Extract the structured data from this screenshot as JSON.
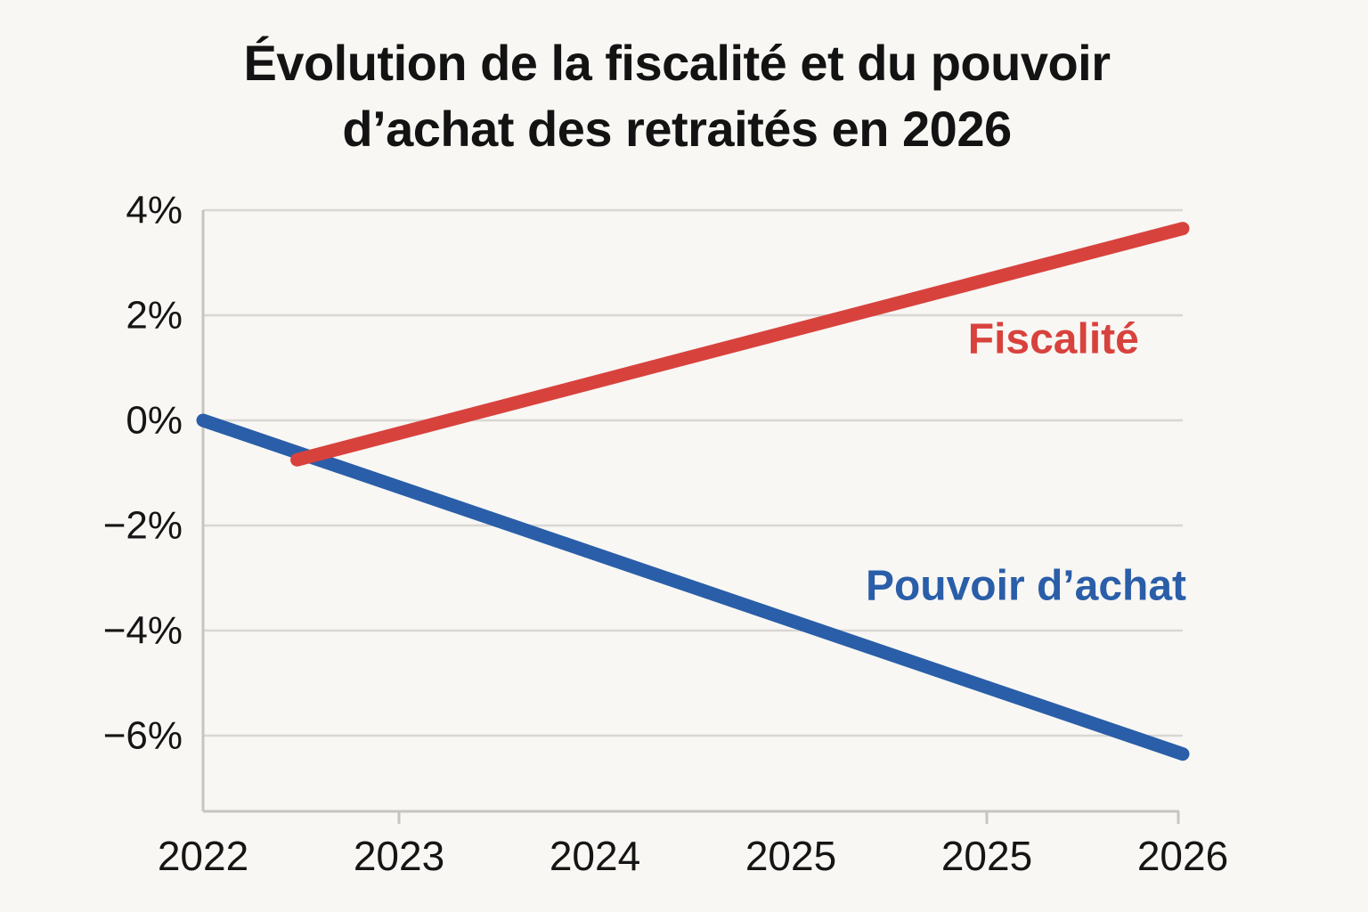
{
  "page": {
    "background_color": "#f8f7f4",
    "title_lines": [
      "Évolution de la fiscalité et du pouvoir",
      "d’achat des retraités en 2026"
    ]
  },
  "chart_data": {
    "type": "line",
    "title": "Évolution de la fiscalité et du pouvoir d’achat des retraités en 2026",
    "xlabel": "",
    "ylabel": "",
    "x_tick_labels": [
      "2022",
      "2023",
      "2024",
      "2025",
      "2025",
      "2026"
    ],
    "x_axis_visible_tick_mark_indices": [
      1,
      4,
      5
    ],
    "y_ticks": [
      4,
      2,
      0,
      -2,
      -4,
      -6
    ],
    "y_tick_labels": [
      "4%",
      "2%",
      "0%",
      "−2%",
      "−4%",
      "−6%"
    ],
    "ylim": [
      -7.4,
      4
    ],
    "grid": "horizontal",
    "legend_position": "inline-labels-on-plot",
    "grid_color": "#d9d7d3",
    "axis_color": "#c7c5c1",
    "text_color": "#151515",
    "series": [
      {
        "name": "Pouvoir d’achat",
        "color": "#2a5ea8",
        "points": [
          {
            "x_cat": 0.0,
            "value_pct": 0.0
          },
          {
            "x_cat": 5.0,
            "value_pct": -6.35
          }
        ],
        "values_at_x_ticks_pct": [
          0.0,
          -1.3,
          -2.5,
          -3.8,
          -5.1,
          -6.35
        ],
        "label": {
          "text": "Pouvoir d’achat",
          "x_cat": 4.2,
          "value_pct": -3.15
        }
      },
      {
        "name": "Fiscalité",
        "color": "#d8423d",
        "points": [
          {
            "x_cat": 0.48,
            "value_pct": -0.75
          },
          {
            "x_cat": 5.0,
            "value_pct": 3.65
          }
        ],
        "values_at_x_ticks_pct": [
          null,
          -0.2,
          0.75,
          1.7,
          2.7,
          3.65
        ],
        "label": {
          "text": "Fiscalité",
          "x_cat": 4.34,
          "value_pct": 1.54
        }
      }
    ]
  }
}
